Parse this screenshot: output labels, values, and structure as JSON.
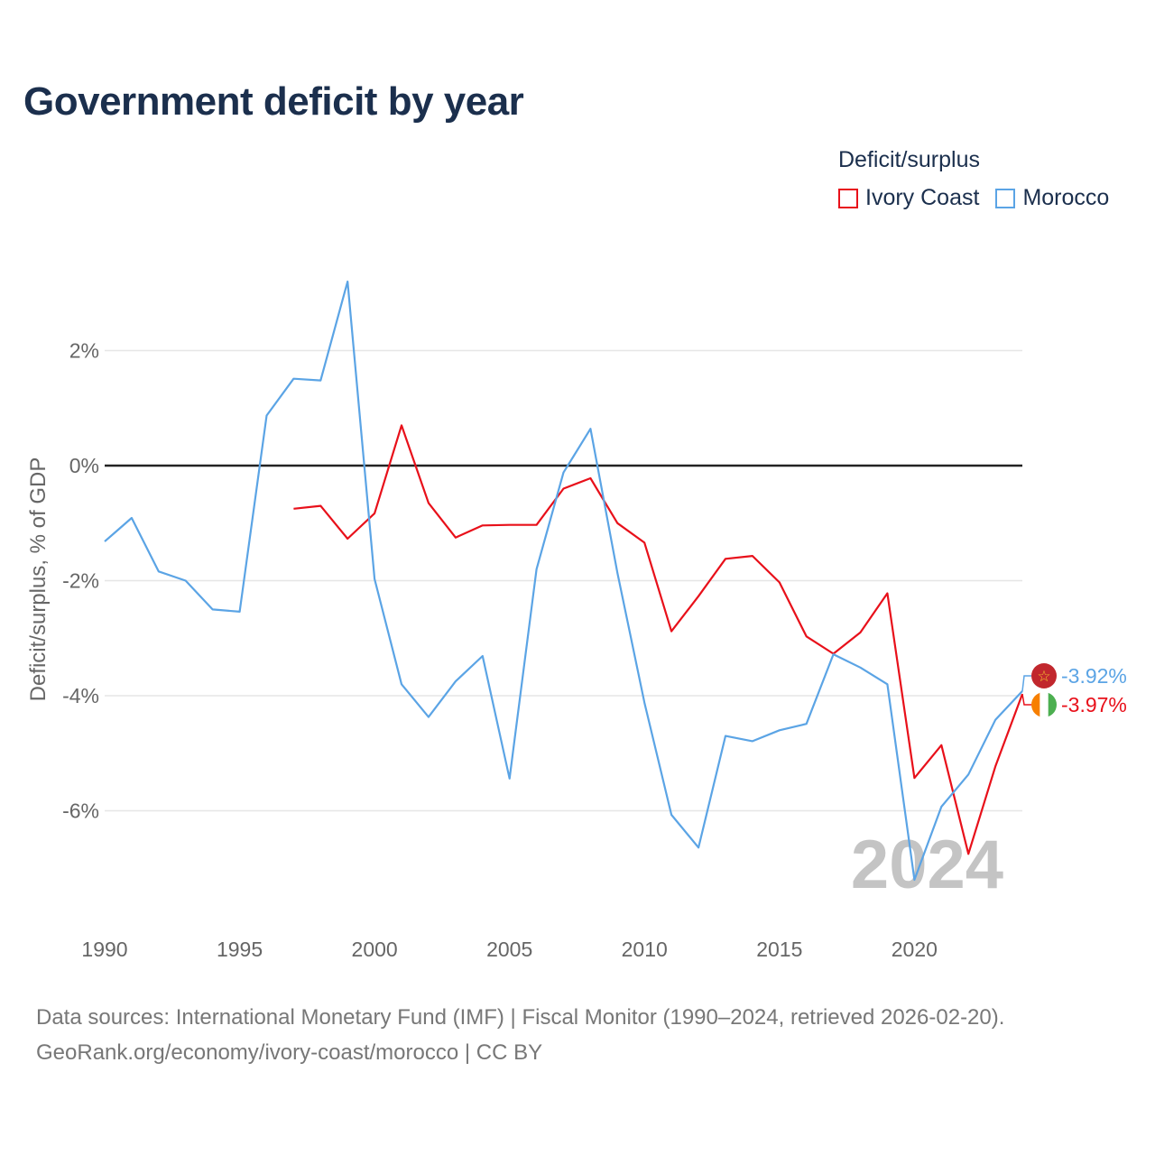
{
  "title": "Government deficit by year",
  "legend": {
    "title": "Deficit/surplus",
    "items": [
      {
        "label": "Ivory Coast",
        "color": "#e8101a"
      },
      {
        "label": "Morocco",
        "color": "#5ba4e5"
      }
    ]
  },
  "footer": {
    "line1": "Data sources: International Monetary Fund (IMF) | Fiscal Monitor (1990–2024, retrieved 2026-02-20).",
    "line2": "GeoRank.org/economy/ivory-coast/morocco | CC BY"
  },
  "chart_data": {
    "type": "line",
    "ylabel": "Deficit/surplus, % of GDP",
    "xlim": [
      1990,
      2024
    ],
    "ylim": [
      -7.8,
      3.5
    ],
    "xticks": [
      1990,
      1995,
      2000,
      2005,
      2010,
      2015,
      2020
    ],
    "yticks": [
      {
        "value": 2,
        "label": "2%"
      },
      {
        "value": 0,
        "label": "0%"
      },
      {
        "value": -2,
        "label": "-2%"
      },
      {
        "value": -4,
        "label": "-4%"
      },
      {
        "value": -6,
        "label": "-6%"
      }
    ],
    "watermark": "2024",
    "series": [
      {
        "name": "Ivory Coast",
        "color": "#e8101a",
        "flag": "ivory-coast-flag-icon",
        "end_label": "-3.97%",
        "x": [
          1997,
          1998,
          1999,
          2000,
          2001,
          2002,
          2003,
          2004,
          2005,
          2006,
          2007,
          2008,
          2009,
          2010,
          2011,
          2012,
          2013,
          2014,
          2015,
          2016,
          2017,
          2018,
          2019,
          2020,
          2021,
          2022,
          2023,
          2024
        ],
        "values": [
          -0.75,
          -0.7,
          -1.27,
          -0.83,
          0.7,
          -0.65,
          -1.25,
          -1.04,
          -1.03,
          -1.03,
          -0.4,
          -0.22,
          -1.0,
          -1.34,
          -2.88,
          -2.27,
          -1.62,
          -1.57,
          -2.03,
          -2.97,
          -3.27,
          -2.9,
          -2.22,
          -5.43,
          -4.86,
          -6.75,
          -5.23,
          -3.97
        ]
      },
      {
        "name": "Morocco",
        "color": "#5ba4e5",
        "flag": "morocco-flag-icon",
        "end_label": "-3.92%",
        "x": [
          1990,
          1991,
          1992,
          1993,
          1994,
          1995,
          1996,
          1997,
          1998,
          1999,
          2000,
          2001,
          2002,
          2003,
          2004,
          2005,
          2006,
          2007,
          2008,
          2009,
          2010,
          2011,
          2012,
          2013,
          2014,
          2015,
          2016,
          2017,
          2018,
          2019,
          2020,
          2021,
          2022,
          2023,
          2024
        ],
        "values": [
          -1.32,
          -0.91,
          -1.84,
          -2.0,
          -2.5,
          -2.54,
          0.87,
          1.51,
          1.48,
          3.2,
          -1.97,
          -3.8,
          -4.37,
          -3.75,
          -3.31,
          -5.44,
          -1.8,
          -0.12,
          0.64,
          -1.87,
          -4.12,
          -6.07,
          -6.64,
          -4.7,
          -4.79,
          -4.6,
          -4.49,
          -3.28,
          -3.51,
          -3.8,
          -7.2,
          -5.93,
          -5.37,
          -4.42,
          -3.92
        ]
      }
    ]
  }
}
